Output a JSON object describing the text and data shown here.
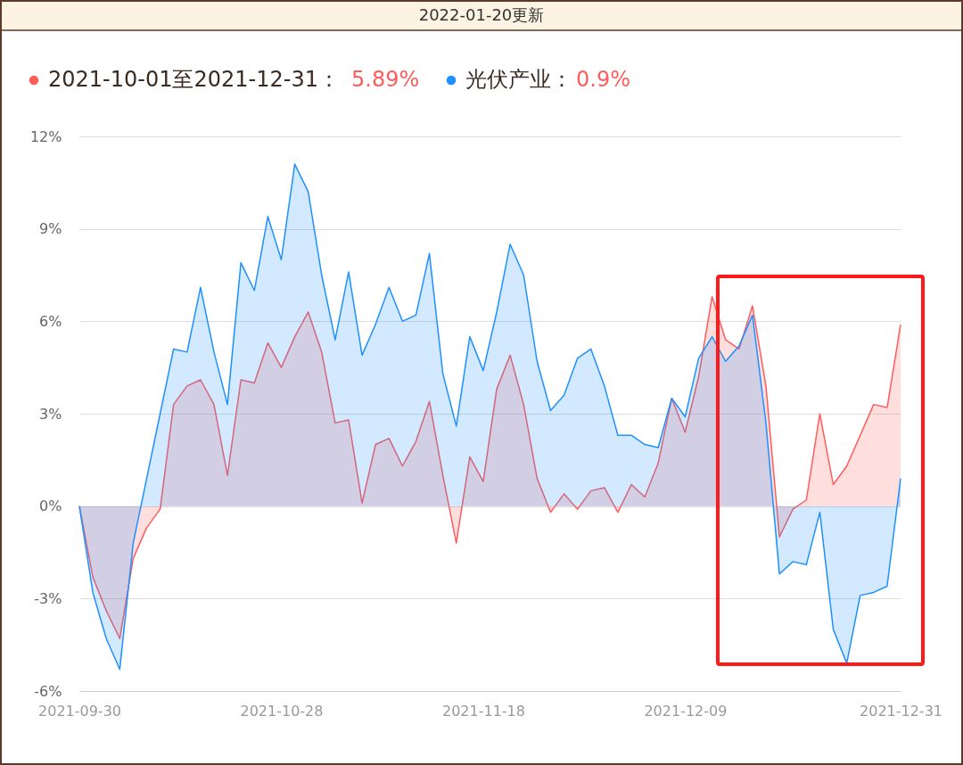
{
  "chart_data": {
    "type": "area",
    "title": "2022-01-20更新",
    "categories": [
      "2021-09-30",
      null,
      null,
      null,
      null,
      null,
      null,
      null,
      null,
      null,
      null,
      null,
      null,
      null,
      null,
      "2021-10-28",
      null,
      null,
      null,
      null,
      null,
      null,
      null,
      null,
      null,
      null,
      null,
      null,
      null,
      null,
      "2021-11-18",
      null,
      null,
      null,
      null,
      null,
      null,
      null,
      null,
      null,
      null,
      null,
      null,
      null,
      null,
      "2021-12-09",
      null,
      null,
      null,
      null,
      null,
      null,
      null,
      null,
      null,
      null,
      null,
      null,
      null,
      null,
      null,
      "2021-12-31"
    ],
    "series": [
      {
        "name": "2021-10-01至2021-12-31：",
        "color": "#ff5c5c",
        "values": [
          0,
          -2.3,
          -3.4,
          -4.3,
          -1.7,
          -0.7,
          -0.1,
          3.3,
          3.9,
          4.1,
          3.3,
          1.0,
          4.1,
          4.0,
          5.3,
          4.5,
          5.5,
          6.3,
          5.0,
          2.7,
          2.8,
          0.1,
          2.0,
          2.2,
          1.3,
          2.1,
          3.4,
          1.0,
          -1.2,
          1.6,
          0.8,
          3.8,
          4.9,
          3.3,
          0.9,
          -0.2,
          0.4,
          -0.1,
          0.5,
          0.6,
          -0.2,
          0.7,
          0.3,
          1.4,
          3.5,
          2.4,
          4.2,
          6.8,
          5.4,
          5.1,
          6.5,
          3.9,
          -1.0,
          -0.1,
          0.2,
          3.0,
          0.7,
          1.3,
          2.3,
          3.3,
          3.2,
          5.89
        ]
      },
      {
        "name": "光伏产业：",
        "color": "#1e90ff",
        "values": [
          0,
          -2.8,
          -4.3,
          -5.3,
          -1.2,
          0.9,
          3.0,
          5.1,
          5.0,
          7.1,
          5.0,
          3.3,
          7.9,
          7.0,
          9.4,
          8.0,
          11.1,
          10.2,
          7.5,
          5.4,
          7.6,
          4.9,
          5.9,
          7.1,
          6.0,
          6.2,
          8.2,
          4.3,
          2.6,
          5.5,
          4.4,
          6.3,
          8.5,
          7.5,
          4.7,
          3.1,
          3.6,
          4.8,
          5.1,
          3.9,
          2.3,
          2.3,
          2.0,
          1.9,
          3.5,
          2.9,
          4.8,
          5.5,
          4.7,
          5.2,
          6.2,
          2.7,
          -2.2,
          -1.8,
          -1.9,
          -0.2,
          -4.0,
          -5.1,
          -2.9,
          -2.8,
          -2.6,
          0.9
        ]
      }
    ],
    "annotations": [
      "5.89%",
      "0.9%"
    ],
    "ylim": [
      -6,
      12
    ],
    "yticks": [
      {
        "value": -6,
        "label": "-6%"
      },
      {
        "value": -3,
        "label": "-3%"
      },
      {
        "value": 0,
        "label": "0%"
      },
      {
        "value": 3,
        "label": "3%"
      },
      {
        "value": 6,
        "label": "6%"
      },
      {
        "value": 9,
        "label": "9%"
      },
      {
        "value": 12,
        "label": "12%"
      }
    ],
    "grid": "y",
    "legend": "top left",
    "marker": "none",
    "line_style": "solid"
  }
}
